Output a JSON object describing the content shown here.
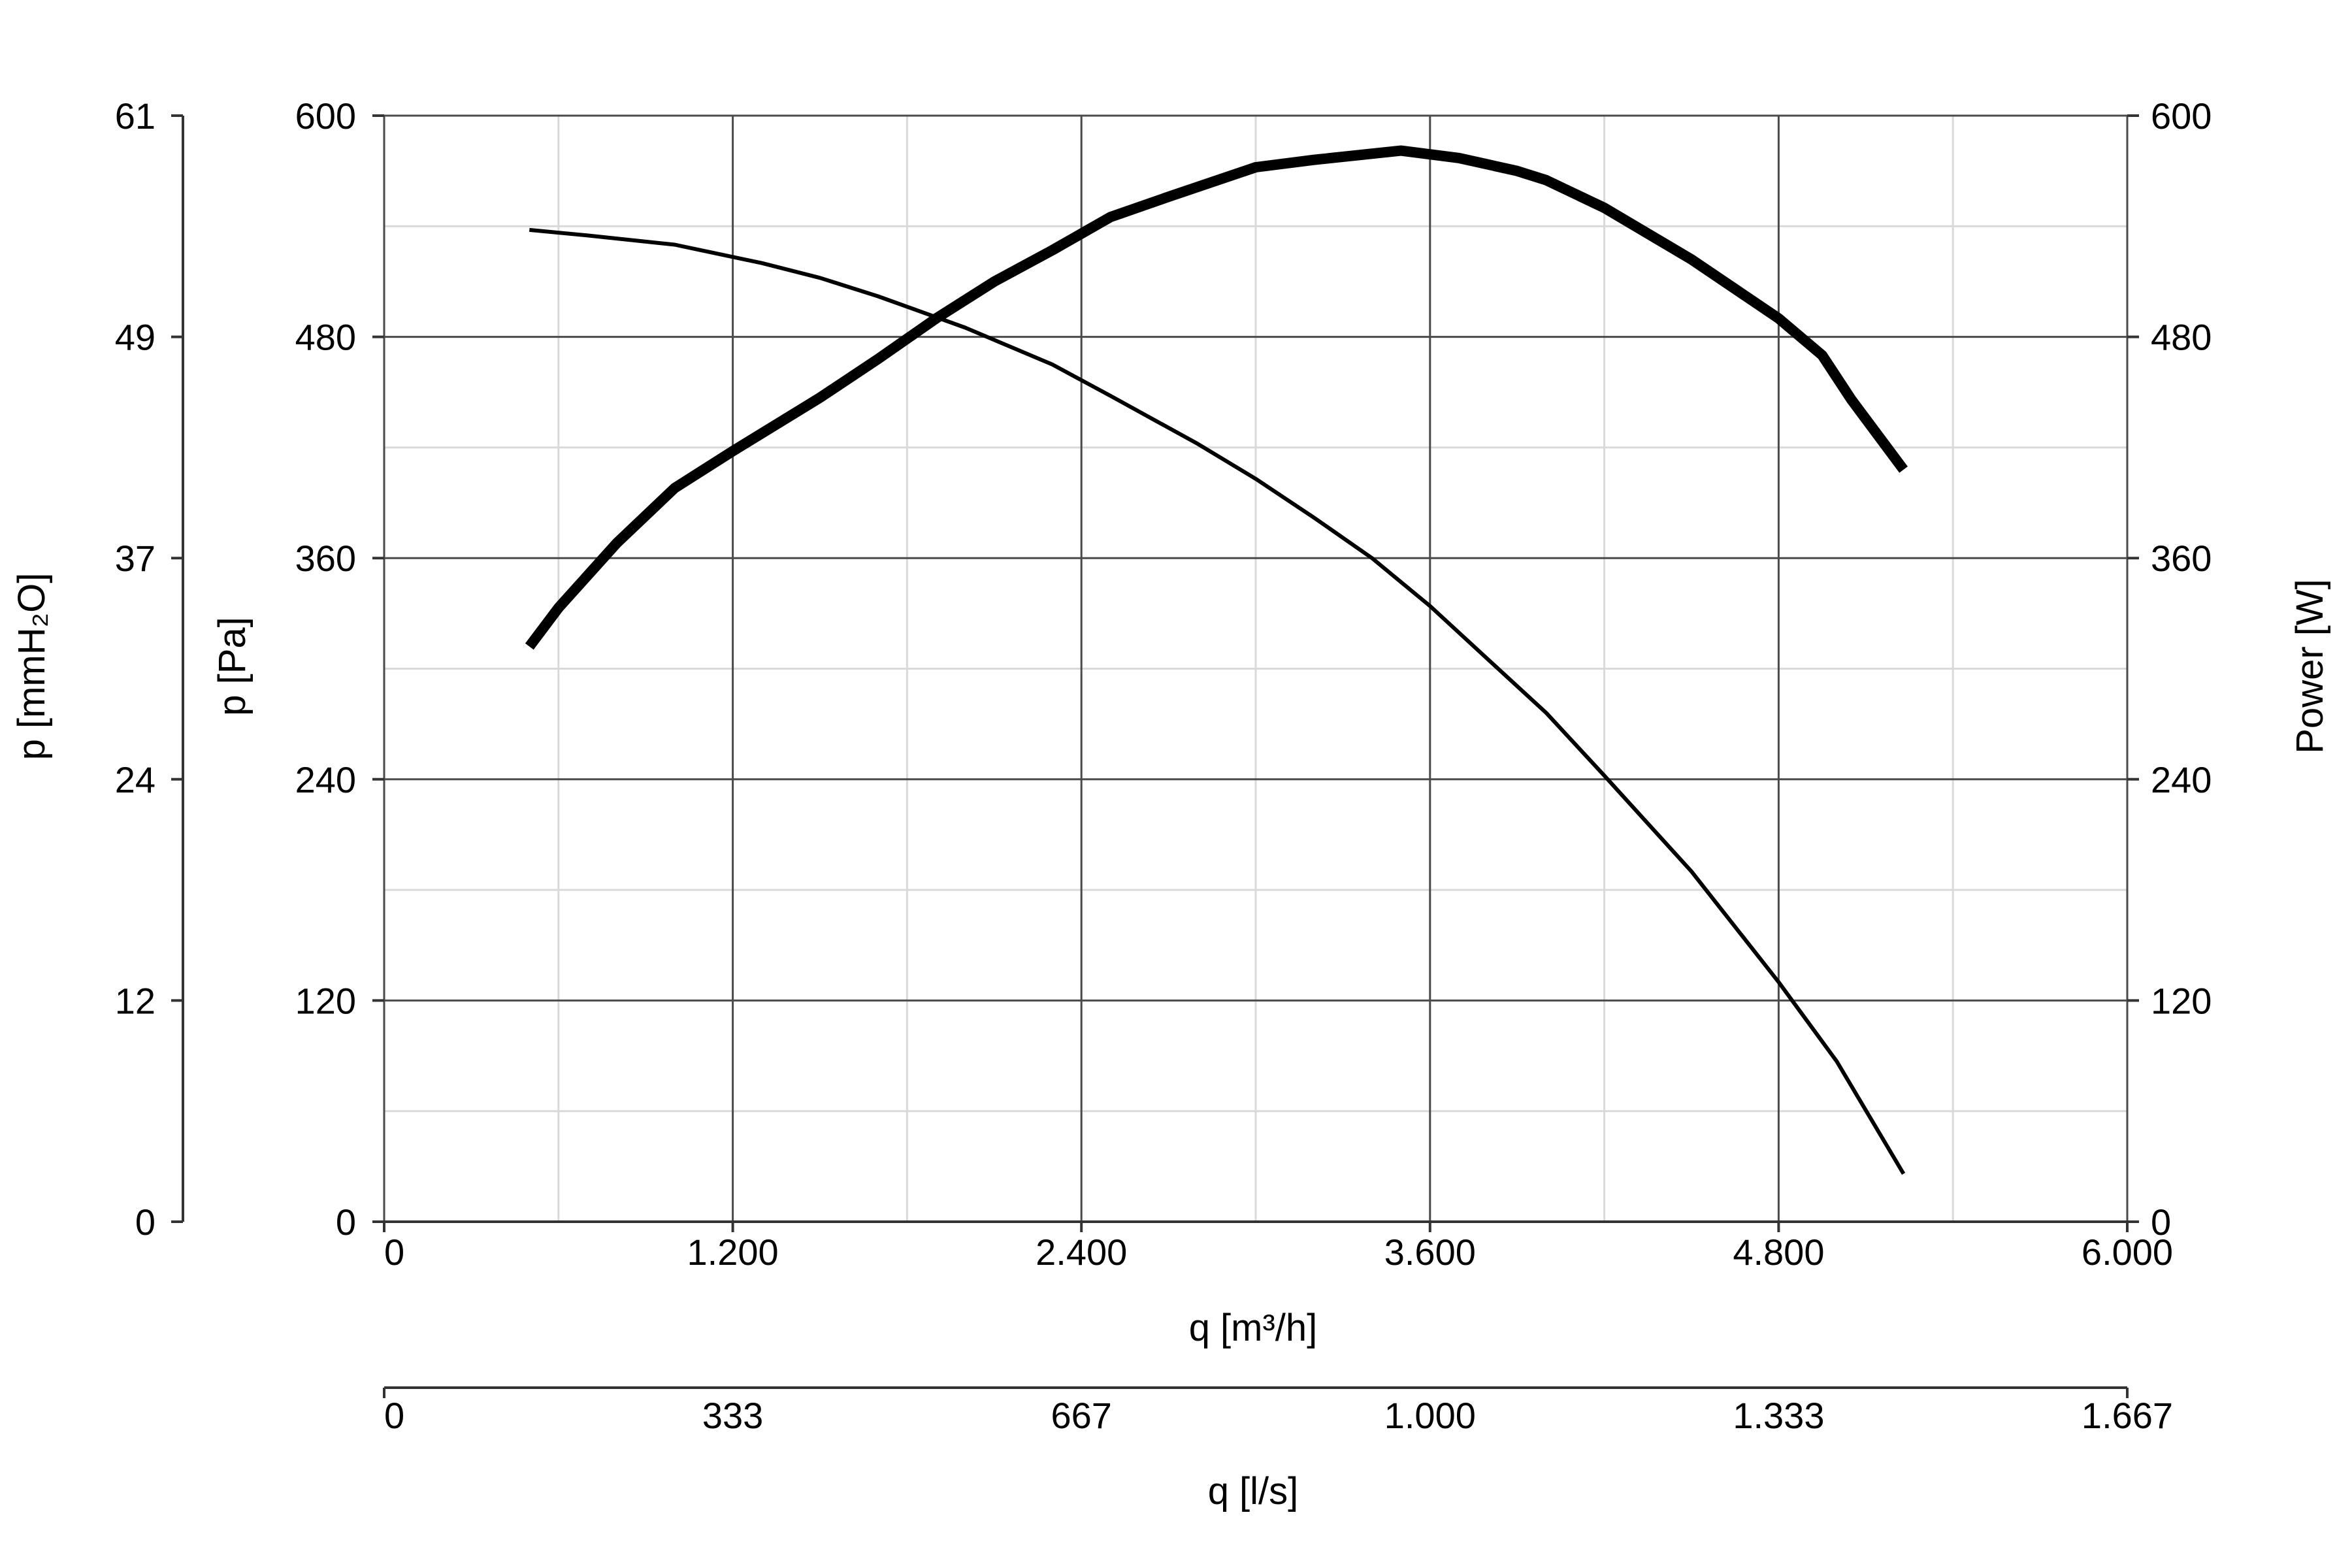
{
  "chart_data": {
    "type": "line",
    "x_axis": {
      "label": "q [m³/h]",
      "range": [
        0,
        6000
      ],
      "ticks": [
        "0",
        "1.200",
        "2.400",
        "3.600",
        "4.800",
        "6.000"
      ]
    },
    "x_axis_secondary": {
      "label": "q [l/s]",
      "range": [
        0,
        1667
      ],
      "ticks": [
        "0",
        "333",
        "667",
        "1.000",
        "1.333",
        "1.667"
      ]
    },
    "y_axis_left_outer": {
      "label": "p [mmH₂O]",
      "range": [
        0,
        61
      ],
      "ticks": [
        "0",
        "12",
        "24",
        "37",
        "49",
        "61"
      ]
    },
    "y_axis_left": {
      "label": "p [Pa]",
      "range": [
        0,
        600
      ],
      "ticks": [
        "0",
        "120",
        "240",
        "360",
        "480",
        "600"
      ]
    },
    "y_axis_right": {
      "label": "Power [W]",
      "range": [
        0,
        600
      ],
      "ticks": [
        "0",
        "120",
        "240",
        "360",
        "480",
        "600"
      ]
    },
    "grid": true,
    "series": [
      {
        "axis": "left",
        "color": "#000000",
        "x": [
          500,
          700,
          1000,
          1300,
          1500,
          1700,
          2000,
          2300,
          2500,
          2800,
          3000,
          3200,
          3400,
          3600,
          3800,
          4000,
          4200,
          4500,
          4800,
          5000,
          5230
        ],
        "y": [
          538,
          535,
          530,
          520,
          512,
          502,
          485,
          465,
          448,
          422,
          403,
          382,
          360,
          334,
          305,
          276,
          242,
          190,
          130,
          87,
          26
        ]
      },
      {
        "axis": "right",
        "color": "#000000",
        "x": [
          500,
          600,
          800,
          1000,
          1200,
          1500,
          1700,
          1900,
          2100,
          2300,
          2500,
          2700,
          3000,
          3200,
          3500,
          3700,
          3900,
          4000,
          4200,
          4500,
          4800,
          4950,
          5050,
          5230
        ],
        "y": [
          312,
          333,
          368,
          398,
          418,
          447,
          468,
          490,
          510,
          527,
          545,
          556,
          572,
          576,
          581,
          577,
          570,
          565,
          550,
          522,
          490,
          470,
          446,
          408
        ]
      }
    ]
  }
}
